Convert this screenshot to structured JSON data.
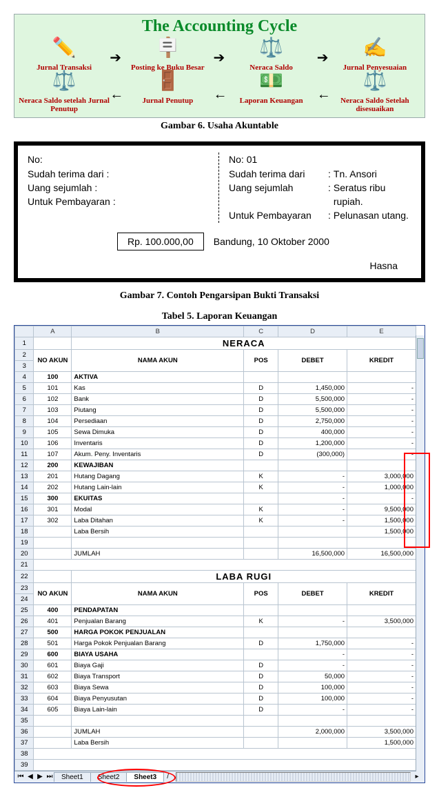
{
  "cycle": {
    "title": "The Accounting Cycle",
    "row1": [
      {
        "icon": "✏️",
        "label": "Jurnal Transaksi"
      },
      {
        "icon": "🪧",
        "label": "Posting ke Buku Besar"
      },
      {
        "icon": "⚖️",
        "label": "Neraca Saldo"
      },
      {
        "icon": "✍️",
        "label": "Jurnal Penyesuaian"
      }
    ],
    "row2": [
      {
        "icon": "⚖️",
        "label": "Neraca Saldo setelah Jurnal Penutup"
      },
      {
        "icon": "🚪",
        "label": "Jurnal Penutup"
      },
      {
        "icon": "💵",
        "label": "Laporan Keuangan"
      },
      {
        "icon": "⚖️",
        "label": "Neraca Saldo Setelah disesuaikan"
      }
    ],
    "caption": "Gambar 6. Usaha Akuntable"
  },
  "receipt": {
    "left": {
      "no_label": "No:",
      "from_label": "Sudah terima dari",
      "amount_label": "Uang sejumlah",
      "for_label": "Untuk Pembayaran"
    },
    "right": {
      "no_label": "No:",
      "no_val": "01",
      "from_label": "Sudah terima dari",
      "from_val": "Tn. Ansori",
      "amount_label": "Uang sejumlah",
      "amount_val": "Seratus ribu rupiah.",
      "for_label": "Untuk Pembayaran",
      "for_val": "Pelunasan utang."
    },
    "amount_box": "Rp. 100.000,00",
    "date": "Bandung, 10 Oktober 2000",
    "signature": "Hasna",
    "caption": "Gambar 7. Contoh Pengarsipan Bukti Transaksi"
  },
  "tabel_caption": "Tabel 5. Laporan Keuangan",
  "sheet": {
    "col_letters": [
      "A",
      "B",
      "C",
      "D",
      "E"
    ],
    "neraca_title": "NERACA",
    "labarugi_title": "LABA RUGI",
    "header_labels": {
      "no": "NO AKUN",
      "nama": "NAMA AKUN",
      "pos": "POS",
      "debet": "DEBET",
      "kredit": "KREDIT"
    },
    "neraca_rows": [
      {
        "r": 4,
        "no": "100",
        "nama": "AKTIVA",
        "pos": "",
        "d": "",
        "k": "",
        "b": true
      },
      {
        "r": 5,
        "no": "101",
        "nama": "Kas",
        "pos": "D",
        "d": "1,450,000",
        "k": "-"
      },
      {
        "r": 6,
        "no": "102",
        "nama": "Bank",
        "pos": "D",
        "d": "5,500,000",
        "k": "-"
      },
      {
        "r": 7,
        "no": "103",
        "nama": "Piutang",
        "pos": "D",
        "d": "5,500,000",
        "k": "-"
      },
      {
        "r": 8,
        "no": "104",
        "nama": "Persediaan",
        "pos": "D",
        "d": "2,750,000",
        "k": "-"
      },
      {
        "r": 9,
        "no": "105",
        "nama": "Sewa Dimuka",
        "pos": "D",
        "d": "400,000",
        "k": "-"
      },
      {
        "r": 10,
        "no": "106",
        "nama": "Inventaris",
        "pos": "D",
        "d": "1,200,000",
        "k": "-"
      },
      {
        "r": 11,
        "no": "107",
        "nama": "Akum. Peny. Inventaris",
        "pos": "D",
        "d": "(300,000)",
        "k": "-"
      },
      {
        "r": 12,
        "no": "200",
        "nama": "KEWAJIBAN",
        "pos": "",
        "d": "",
        "k": "",
        "b": true
      },
      {
        "r": 13,
        "no": "201",
        "nama": "Hutang Dagang",
        "pos": "K",
        "d": "-",
        "k": "3,000,000"
      },
      {
        "r": 14,
        "no": "202",
        "nama": "Hutang Lain-lain",
        "pos": "K",
        "d": "-",
        "k": "1,000,000"
      },
      {
        "r": 15,
        "no": "300",
        "nama": "EKUITAS",
        "pos": "",
        "d": "-",
        "k": "-",
        "b": true
      },
      {
        "r": 16,
        "no": "301",
        "nama": "Modal",
        "pos": "K",
        "d": "-",
        "k": "9,500,000"
      },
      {
        "r": 17,
        "no": "302",
        "nama": "Laba Ditahan",
        "pos": "K",
        "d": "-",
        "k": "1,500,000"
      },
      {
        "r": 18,
        "no": "",
        "nama": "Laba Bersih",
        "pos": "",
        "d": "",
        "k": "1,500,000"
      },
      {
        "r": 19,
        "no": "",
        "nama": "",
        "pos": "",
        "d": "",
        "k": ""
      },
      {
        "r": 20,
        "no": "",
        "nama": "JUMLAH",
        "pos": "",
        "d": "16,500,000",
        "k": "16,500,000"
      }
    ],
    "labarugi_rows": [
      {
        "r": 25,
        "no": "400",
        "nama": "PENDAPATAN",
        "pos": "",
        "d": "",
        "k": "",
        "b": true
      },
      {
        "r": 26,
        "no": "401",
        "nama": "Penjualan Barang",
        "pos": "K",
        "d": "-",
        "k": "3,500,000"
      },
      {
        "r": 27,
        "no": "500",
        "nama": "HARGA POKOK PENJUALAN",
        "pos": "",
        "d": "",
        "k": "",
        "b": true
      },
      {
        "r": 28,
        "no": "501",
        "nama": "Harga Pokok Penjualan Barang",
        "pos": "D",
        "d": "1,750,000",
        "k": "-"
      },
      {
        "r": 29,
        "no": "600",
        "nama": "BIAYA USAHA",
        "pos": "",
        "d": "-",
        "k": "-",
        "b": true
      },
      {
        "r": 30,
        "no": "601",
        "nama": "Biaya Gaji",
        "pos": "D",
        "d": "-",
        "k": "-"
      },
      {
        "r": 31,
        "no": "602",
        "nama": "Biaya Transport",
        "pos": "D",
        "d": "50,000",
        "k": "-"
      },
      {
        "r": 32,
        "no": "603",
        "nama": "Biaya Sewa",
        "pos": "D",
        "d": "100,000",
        "k": "-"
      },
      {
        "r": 33,
        "no": "604",
        "nama": "Biaya Penyusutan",
        "pos": "D",
        "d": "100,000",
        "k": "-"
      },
      {
        "r": 34,
        "no": "605",
        "nama": "Biaya Lain-lain",
        "pos": "D",
        "d": "-",
        "k": "-"
      },
      {
        "r": 35,
        "no": "",
        "nama": "",
        "pos": "",
        "d": "",
        "k": ""
      },
      {
        "r": 36,
        "no": "",
        "nama": "JUMLAH",
        "pos": "",
        "d": "2,000,000",
        "k": "3,500,000"
      },
      {
        "r": 37,
        "no": "",
        "nama": "Laba Bersih",
        "pos": "",
        "d": "",
        "k": "1,500,000"
      }
    ],
    "tabs": [
      "Sheet1",
      "Sheet2",
      "Sheet3"
    ],
    "active_tab": "Sheet3"
  }
}
